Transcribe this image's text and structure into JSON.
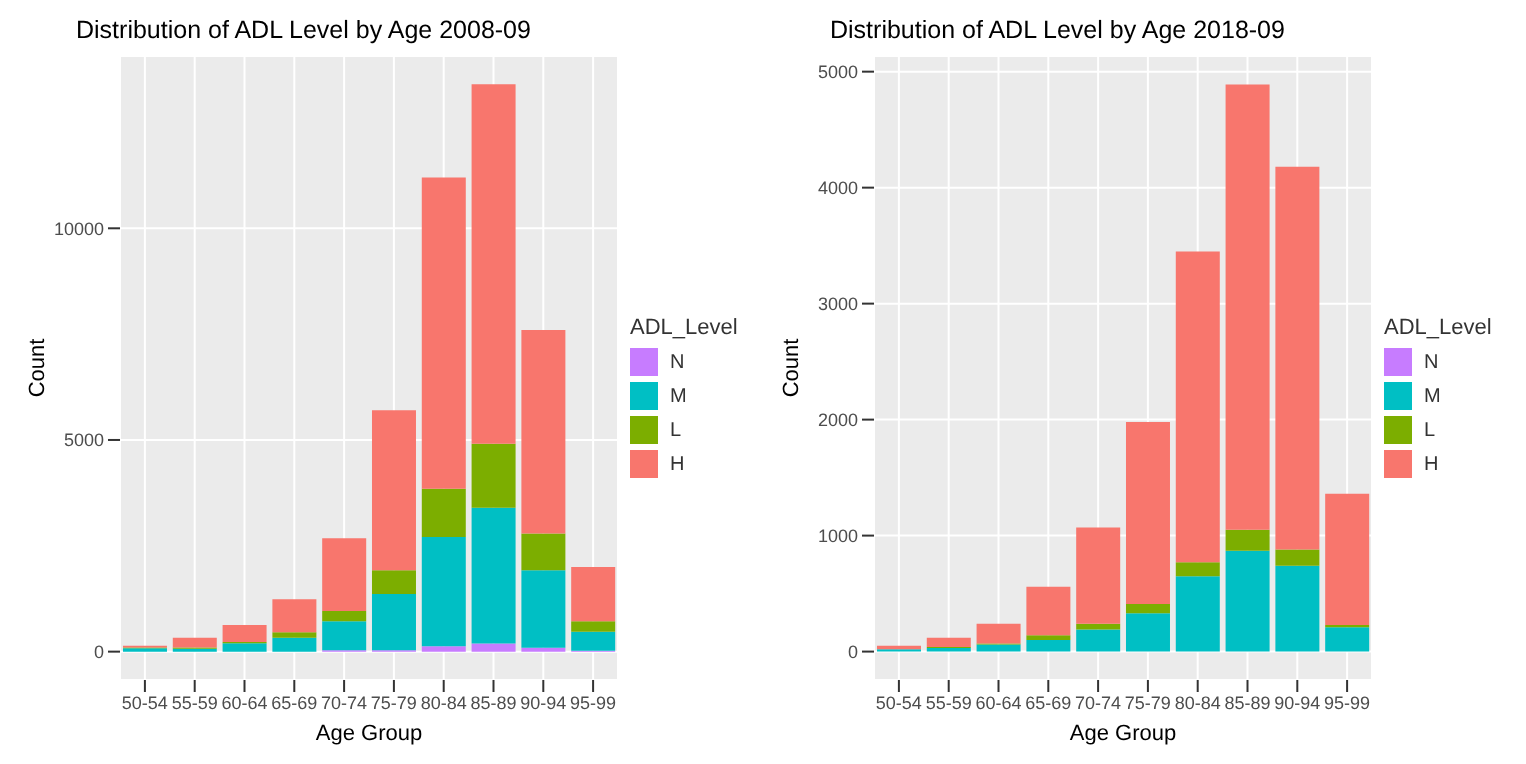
{
  "chart_data": [
    {
      "type": "bar",
      "title": "Distribution of ADL Level by Age 2008-09",
      "xlabel": "Age Group",
      "ylabel": "Count",
      "legend_title": "ADL_Level",
      "categories": [
        "50-54",
        "55-59",
        "60-64",
        "65-69",
        "70-74",
        "75-79",
        "80-84",
        "85-89",
        "90-94",
        "95-99"
      ],
      "stacked": true,
      "ylim": [
        -670,
        14070
      ],
      "yticks": [
        0,
        5000,
        10000
      ],
      "grid": true,
      "legend": "right",
      "series": [
        {
          "name": "N",
          "color": "#c77cff",
          "values": [
            0,
            0,
            0,
            null,
            30,
            30,
            130,
            190,
            90,
            20
          ]
        },
        {
          "name": "M",
          "color": "#00bfc4",
          "values": [
            80,
            70,
            200,
            330,
            690,
            1330,
            2580,
            3210,
            1830,
            450
          ]
        },
        {
          "name": "L",
          "color": "#7cae00",
          "values": [
            20,
            30,
            30,
            130,
            240,
            560,
            1140,
            1510,
            870,
            250
          ]
        },
        {
          "name": "H",
          "color": "#f8766d",
          "values": [
            40,
            230,
            400,
            780,
            1720,
            3780,
            7350,
            8490,
            4810,
            1280
          ]
        }
      ]
    },
    {
      "type": "bar",
      "title": "Distribution of ADL Level by Age 2018-09",
      "xlabel": "Age Group",
      "ylabel": "Count",
      "legend_title": "ADL_Level",
      "categories": [
        "50-54",
        "55-59",
        "60-64",
        "65-69",
        "70-74",
        "75-79",
        "80-84",
        "85-89",
        "90-94",
        "95-99"
      ],
      "stacked": true,
      "ylim": [
        -245,
        5135
      ],
      "yticks": [
        0,
        1000,
        2000,
        3000,
        4000,
        5000
      ],
      "grid": true,
      "legend": "right",
      "series": [
        {
          "name": "N",
          "color": "#c77cff",
          "values": [
            0,
            0,
            0,
            0,
            0,
            0,
            0,
            0,
            0,
            0
          ]
        },
        {
          "name": "M",
          "color": "#00bfc4",
          "values": [
            20,
            30,
            60,
            100,
            190,
            330,
            650,
            870,
            740,
            210
          ]
        },
        {
          "name": "L",
          "color": "#7cae00",
          "values": [
            null,
            10,
            10,
            40,
            50,
            80,
            120,
            180,
            140,
            20
          ]
        },
        {
          "name": "H",
          "color": "#f8766d",
          "values": [
            30,
            80,
            170,
            420,
            830,
            1570,
            2680,
            3840,
            3300,
            1130
          ]
        }
      ]
    }
  ]
}
